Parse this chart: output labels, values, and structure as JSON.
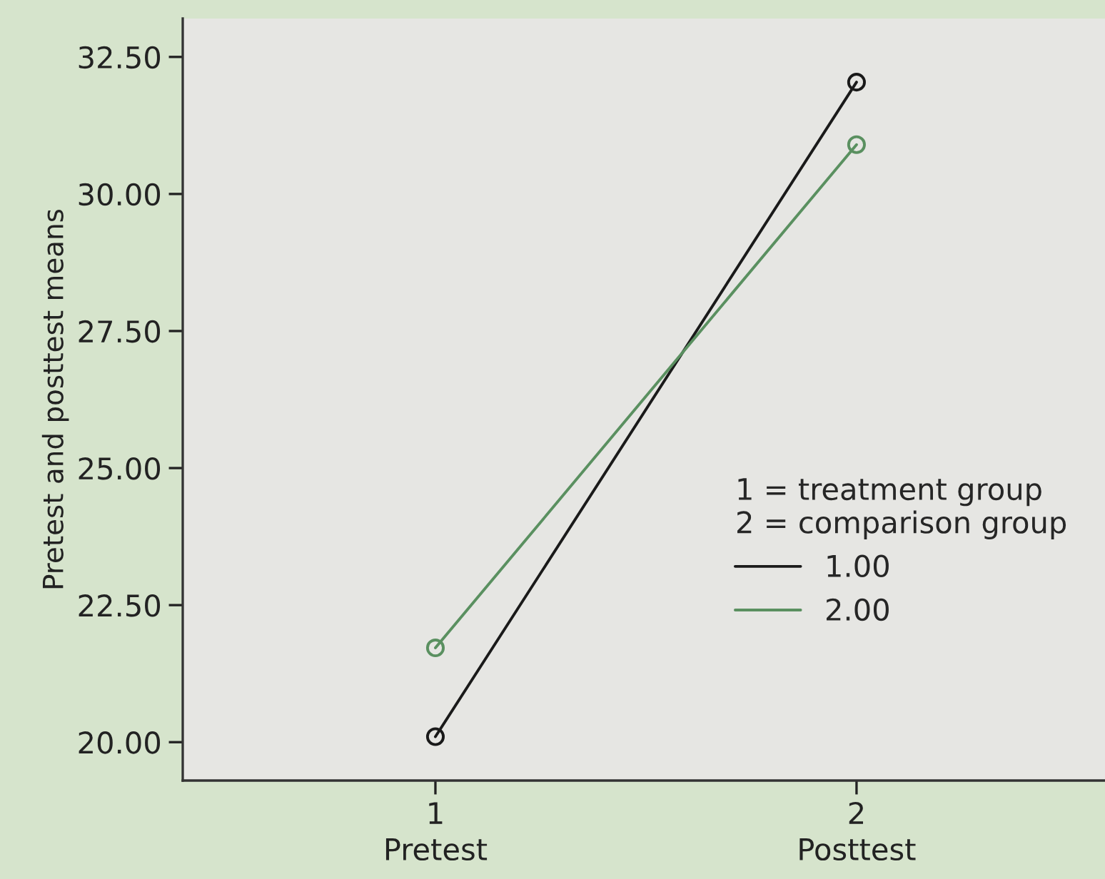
{
  "chart_data": {
    "type": "line",
    "ylabel": "Pretest and posttest means",
    "x": [
      1,
      2
    ],
    "xlim": [
      0.4,
      2.59
    ],
    "xticks": [
      1,
      2
    ],
    "series": [
      {
        "name": "1.00",
        "color": "#1a1a1a",
        "values": [
          20.1,
          32.04
        ]
      },
      {
        "name": "2.00",
        "color": "#5a9060",
        "values": [
          21.72,
          30.9
        ]
      }
    ],
    "ylim": [
      19.3,
      33.2
    ],
    "yticks": [
      {
        "value": 20,
        "label": "20.00"
      },
      {
        "value": 22.5,
        "label": "22.50"
      },
      {
        "value": 25,
        "label": "25.00"
      },
      {
        "value": 27.5,
        "label": "27.50"
      },
      {
        "value": 30,
        "label": "30.00"
      },
      {
        "value": 32.5,
        "label": "32.50"
      }
    ],
    "legend_title": "1 = treatment group\n2 = comparison group",
    "legend": "right",
    "marker": "circle",
    "line_style": "solid",
    "grid": false,
    "annotations": [
      "Pretest",
      "Posttest"
    ]
  }
}
